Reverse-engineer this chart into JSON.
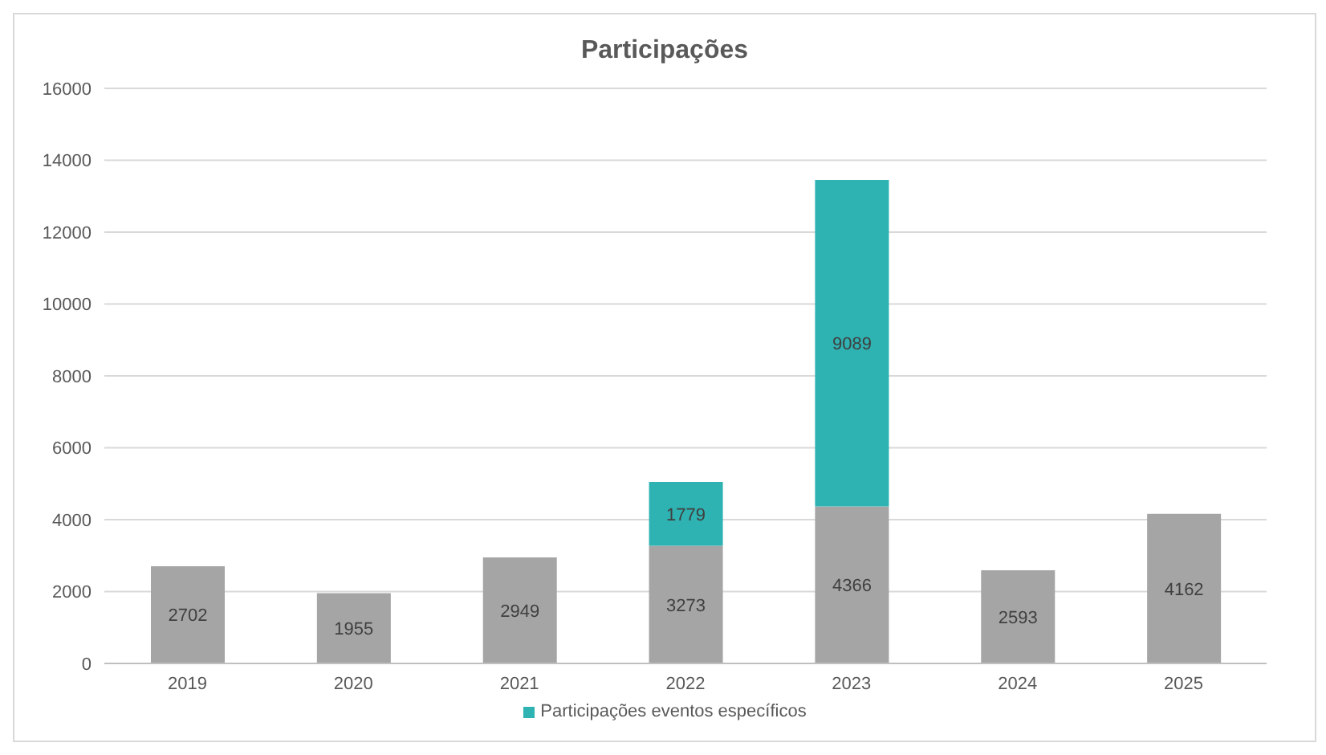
{
  "chart_data": {
    "type": "bar",
    "title": "Participações",
    "categories": [
      "2019",
      "2020",
      "2021",
      "2022",
      "2023",
      "2024",
      "2025"
    ],
    "stacked": true,
    "series": [
      {
        "color": "#a5a5a5",
        "values": [
          2702,
          1955,
          2949,
          3273,
          4366,
          2593,
          4162
        ]
      },
      {
        "name": "Participações eventos específicos",
        "color": "#2eb2b2",
        "values": [
          null,
          null,
          null,
          1779,
          9089,
          null,
          null
        ]
      }
    ],
    "ylim": [
      0,
      16000
    ],
    "yticks": [
      0,
      2000,
      4000,
      6000,
      8000,
      10000,
      12000,
      14000,
      16000
    ],
    "grid": "y",
    "legend": "bottom",
    "data_labels": true
  }
}
